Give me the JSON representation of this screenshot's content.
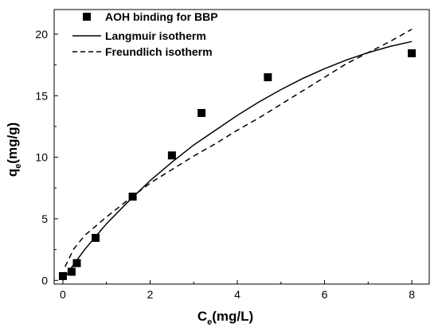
{
  "chart_data": {
    "type": "scatter",
    "xlabel": {
      "main": "C",
      "sub": "e",
      "rest": "(mg/L)"
    },
    "ylabel": {
      "main": "q",
      "sub": "e",
      "rest": "(mg/g)"
    },
    "xlim": [
      -0.2,
      8.4
    ],
    "ylim": [
      -0.3,
      22.0
    ],
    "xticks": [
      0,
      2,
      4,
      6,
      8
    ],
    "yticks": [
      0,
      5,
      10,
      15,
      20
    ],
    "grid": false,
    "legend_position": "top-left",
    "series": [
      {
        "name": "AOH binding for BBP",
        "kind": "points",
        "marker": "square",
        "color": "#000000",
        "x": [
          0.0,
          0.2,
          0.32,
          0.75,
          1.6,
          2.5,
          3.18,
          4.7,
          8.0
        ],
        "y": [
          0.35,
          0.7,
          1.4,
          3.45,
          6.8,
          10.15,
          13.6,
          16.5,
          18.45
        ]
      },
      {
        "name": "Langmuir isotherm",
        "kind": "line",
        "dash": "solid",
        "color": "#000000",
        "x": [
          0.0,
          0.25,
          0.5,
          1.0,
          1.5,
          2.0,
          2.5,
          3.0,
          3.5,
          4.0,
          4.5,
          5.0,
          5.5,
          6.0,
          6.5,
          7.0,
          7.5,
          8.0
        ],
        "y": [
          0.0,
          1.3,
          2.5,
          4.6,
          6.4,
          8.1,
          9.6,
          11.0,
          12.2,
          13.4,
          14.5,
          15.5,
          16.4,
          17.2,
          17.9,
          18.5,
          19.0,
          19.4
        ]
      },
      {
        "name": "Freundlich isotherm",
        "kind": "line",
        "dash": "dashed",
        "color": "#000000",
        "x": [
          0.05,
          0.25,
          0.5,
          1.0,
          1.5,
          2.0,
          2.5,
          3.0,
          3.5,
          4.0,
          4.5,
          5.0,
          5.5,
          6.0,
          6.5,
          7.0,
          7.5,
          8.0
        ],
        "y": [
          1.1,
          2.55,
          3.65,
          5.15,
          6.55,
          7.9,
          9.0,
          10.1,
          11.1,
          12.2,
          13.2,
          14.3,
          15.4,
          16.5,
          17.6,
          18.5,
          19.4,
          20.4
        ]
      }
    ]
  }
}
